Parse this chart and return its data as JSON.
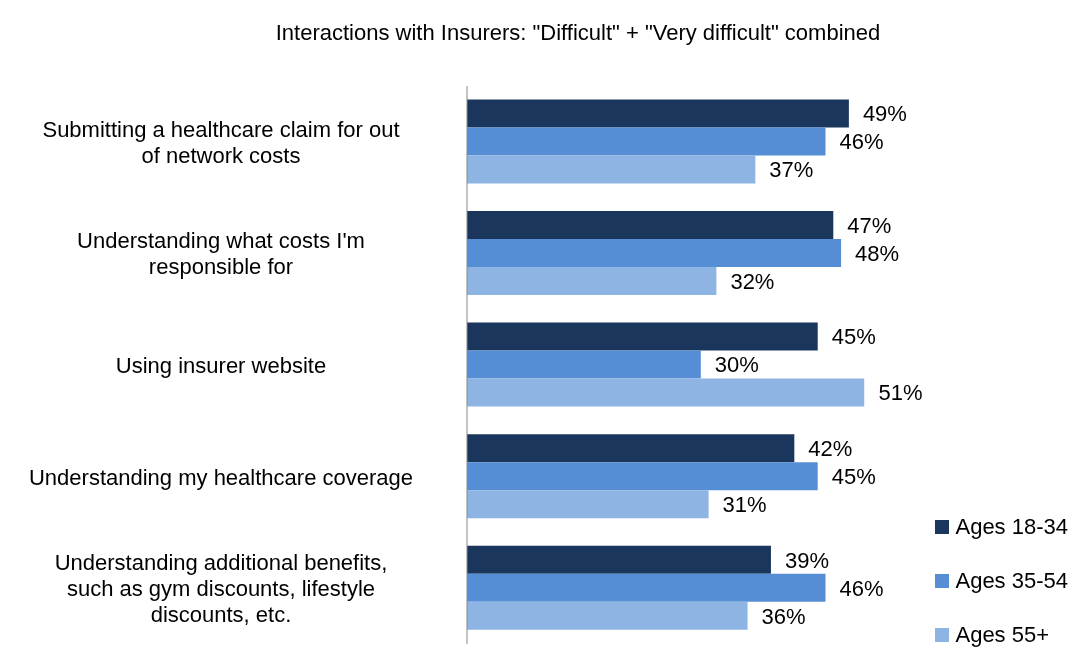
{
  "chart_data": {
    "type": "bar",
    "orientation": "horizontal",
    "tick_labels": "y",
    "title": "Interactions with Insurers: \"Difficult\" + \"Very difficult\" combined",
    "categories": [
      "Submitting a healthcare claim for out of network costs",
      "Understanding what costs I'm responsible for",
      "Using insurer website",
      "Understanding my healthcare coverage",
      "Understanding additional benefits, such as gym discounts, lifestyle discounts, etc."
    ],
    "series": [
      {
        "name": "Ages 18-34",
        "color": "#1b365d",
        "values": [
          49,
          47,
          45,
          42,
          39
        ],
        "value_labels": [
          "49%",
          "47%",
          "45%",
          "42%",
          "39%"
        ]
      },
      {
        "name": "Ages 35-54",
        "color": "#558ed5",
        "values": [
          46,
          48,
          30,
          45,
          46
        ],
        "value_labels": [
          "46%",
          "48%",
          "30%",
          "45%",
          "46%"
        ]
      },
      {
        "name": "Ages 55+",
        "color": "#8eb4e3",
        "values": [
          37,
          32,
          51,
          31,
          36
        ],
        "value_labels": [
          "37%",
          "32%",
          "51%",
          "31%",
          "36%"
        ]
      }
    ],
    "legend": "bottom right",
    "grid": false
  }
}
